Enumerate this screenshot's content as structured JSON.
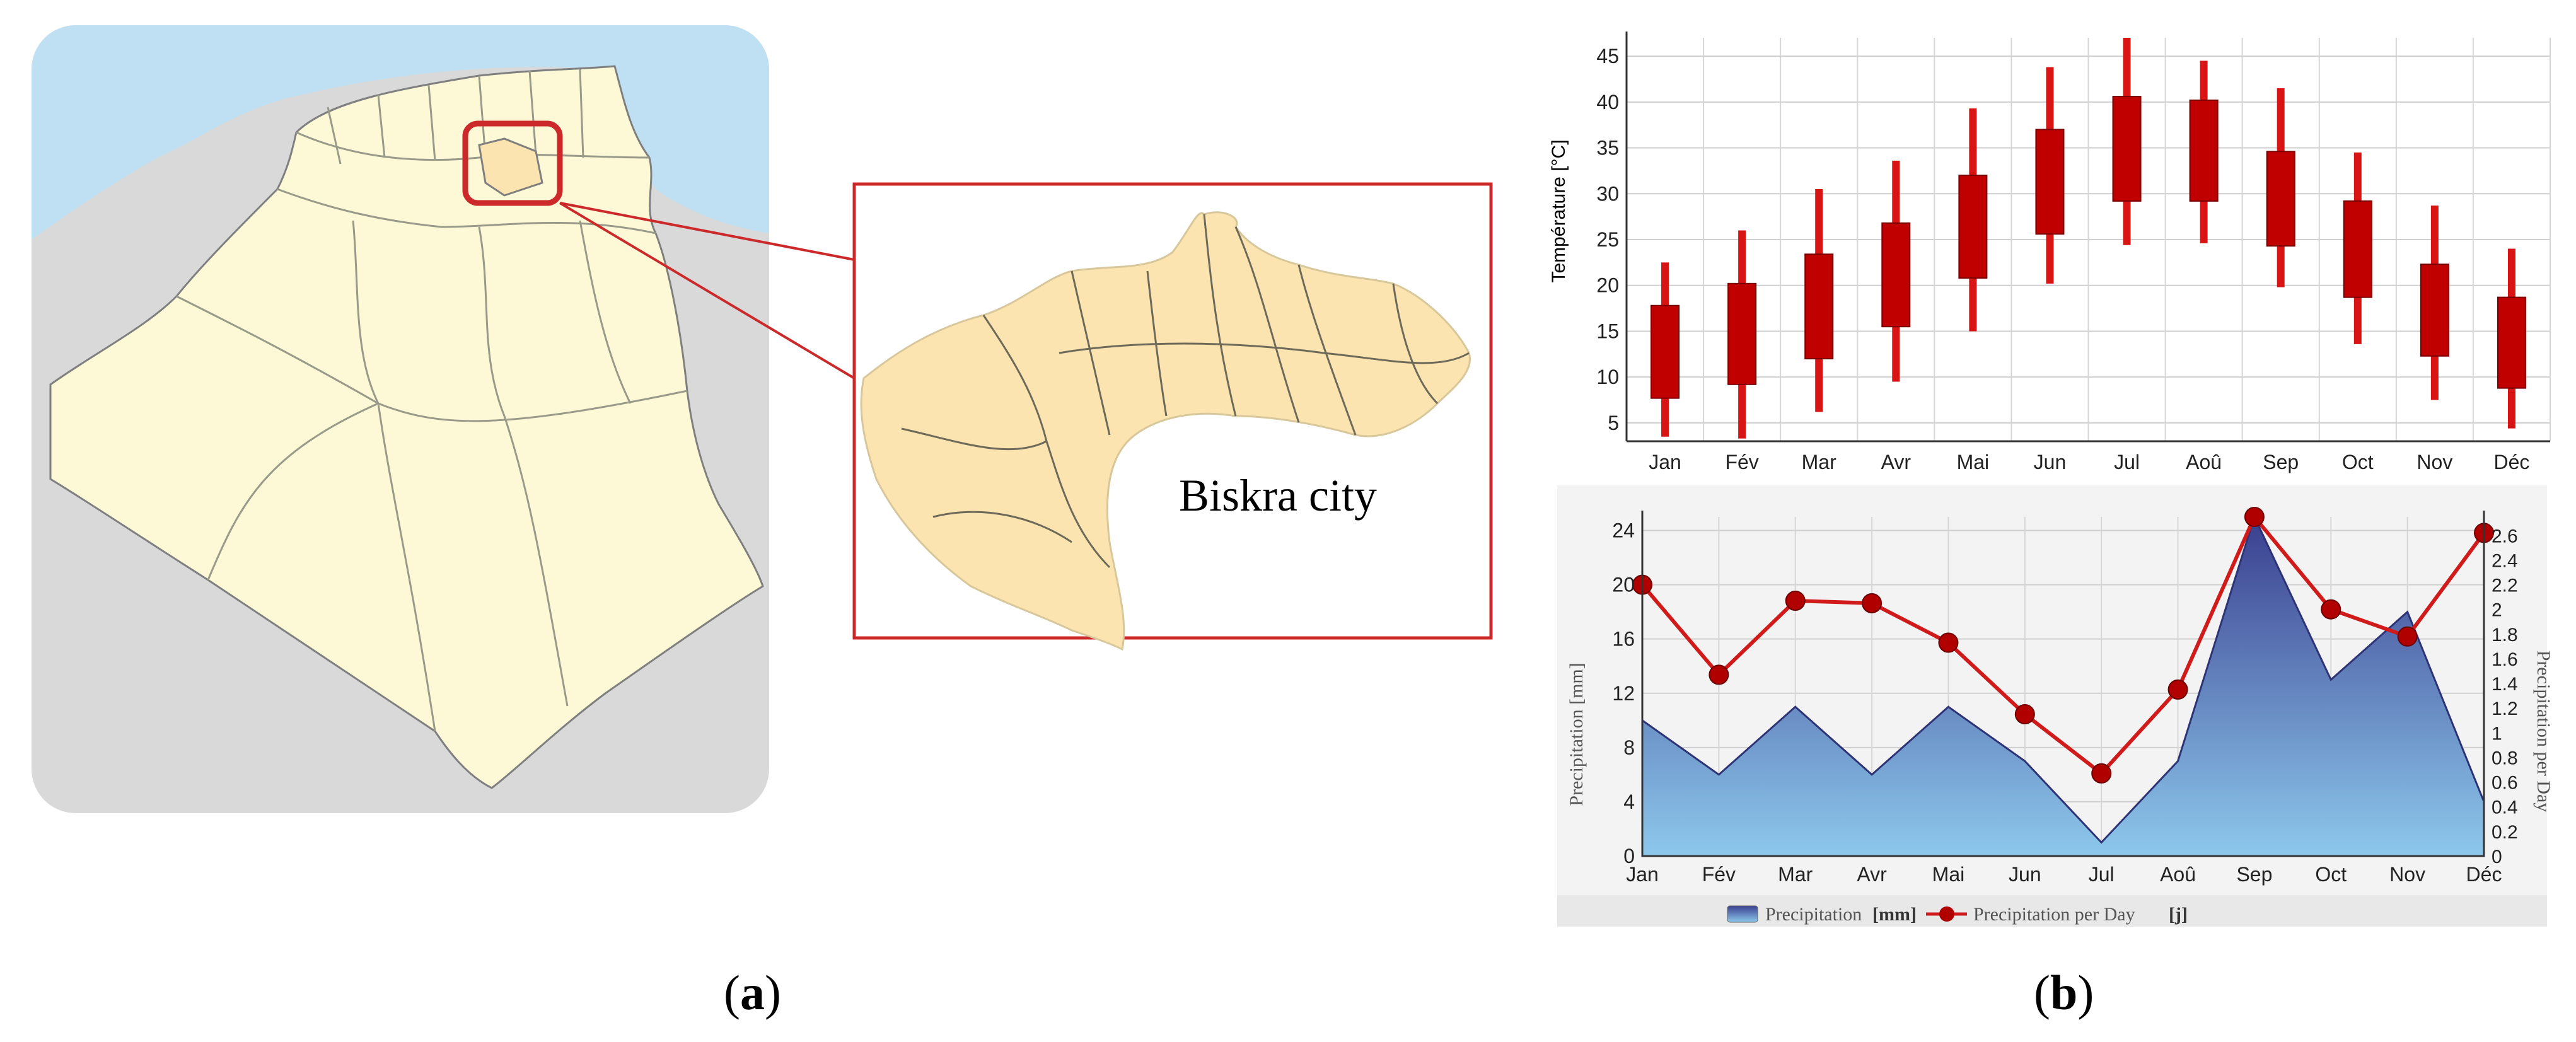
{
  "captions": {
    "a_open": "(",
    "a_letter": "a",
    "a_close": ")",
    "b_open": "(",
    "b_letter": "b",
    "b_close": ")"
  },
  "map": {
    "city_label": "Biskra city",
    "colors": {
      "sea": "#bfe0f2",
      "land_out": "#d9d9d9",
      "algeria": "#fdf9d6",
      "biskra": "#fbe4b0",
      "border": "#cc2a2a"
    }
  },
  "chart_data": [
    {
      "type": "candlestick",
      "ylabel": "Température [°C]",
      "categories": [
        "Jan",
        "Fév",
        "Mar",
        "Avr",
        "Mai",
        "Jun",
        "Jul",
        "Aoû",
        "Sep",
        "Oct",
        "Nov",
        "Déc"
      ],
      "ylim": [
        3,
        47
      ],
      "yticks": [
        5,
        10,
        15,
        20,
        25,
        30,
        35,
        40,
        45
      ],
      "box_low": [
        7.7,
        9.2,
        12,
        15.5,
        20.8,
        25.6,
        29.2,
        29.2,
        24.3,
        18.7,
        12.3,
        8.8
      ],
      "box_high": [
        17.8,
        20.2,
        23.4,
        26.8,
        32,
        37,
        40.6,
        40.2,
        34.6,
        29.2,
        22.3,
        18.7
      ],
      "whisker_low": [
        3.5,
        3.3,
        6.2,
        9.5,
        15,
        20.2,
        24.4,
        24.6,
        19.8,
        13.6,
        7.5,
        4.4
      ],
      "whisker_high": [
        22.5,
        26,
        30.5,
        33.6,
        39.3,
        43.8,
        47,
        44.5,
        41.5,
        34.5,
        28.7,
        24
      ],
      "colors": {
        "box": "#c00000",
        "whisker": "#d81414"
      },
      "grid": true
    },
    {
      "type": "area+line",
      "categories": [
        "Jan",
        "Fév",
        "Mar",
        "Avr",
        "Mai",
        "Jun",
        "Jul",
        "Aoû",
        "Sep",
        "Oct",
        "Nov",
        "Déc"
      ],
      "series": [
        {
          "name": "Precipitation",
          "unit": "[mm]",
          "axis": "left",
          "type": "area",
          "values": [
            10,
            6,
            11,
            6,
            11,
            7,
            1,
            7,
            25,
            13,
            18,
            4
          ]
        },
        {
          "name": "Precipitation  per Day",
          "unit": "[j]",
          "axis": "right",
          "type": "line",
          "values": [
            2.2,
            1.47,
            2.07,
            2.05,
            1.73,
            1.15,
            0.67,
            1.35,
            2.75,
            2.0,
            1.78,
            2.62
          ]
        }
      ],
      "ylabel_left": "Precipitation [mm]",
      "ylabel_right": "Precipitation  per Day",
      "ylim_left": [
        0,
        25
      ],
      "ylim_right": [
        0,
        2.75
      ],
      "yticks_left": [
        0,
        4,
        8,
        12,
        16,
        20,
        24
      ],
      "yticks_right": [
        "0",
        "0.2",
        "0.4",
        "0.6",
        "0.8",
        "1",
        "1.2",
        "1.4",
        "1.6",
        "1.8",
        "2",
        "2.2",
        "2.4",
        "2.6"
      ],
      "legend": {
        "area_label": "Precipitation",
        "area_unit": "[mm]",
        "line_label": "Precipitation  per Day",
        "line_unit": "[j]",
        "position": "bottom"
      },
      "colors": {
        "area_top": "#3a3f8f",
        "area_bottom": "#8dc8ec",
        "line": "#d11a1a",
        "marker": "#b00000"
      },
      "grid": true
    }
  ]
}
